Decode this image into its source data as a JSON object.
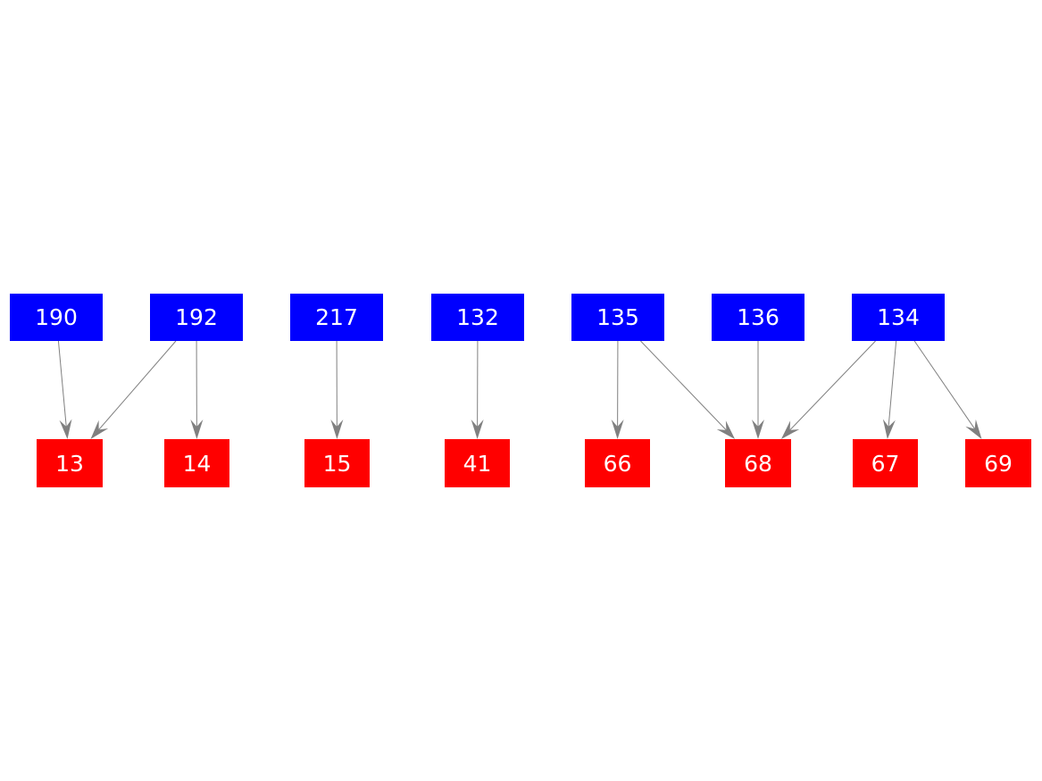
{
  "colors": {
    "source": "#0000ff",
    "target": "#ff0000",
    "edge": "#808080",
    "label": "#ffffff"
  },
  "nodes": [
    {
      "id": "190",
      "label": "190",
      "group": "source"
    },
    {
      "id": "192",
      "label": "192",
      "group": "source"
    },
    {
      "id": "217",
      "label": "217",
      "group": "source"
    },
    {
      "id": "132",
      "label": "132",
      "group": "source"
    },
    {
      "id": "135",
      "label": "135",
      "group": "source"
    },
    {
      "id": "136",
      "label": "136",
      "group": "source"
    },
    {
      "id": "134",
      "label": "134",
      "group": "source"
    },
    {
      "id": "13",
      "label": "13",
      "group": "target"
    },
    {
      "id": "14",
      "label": "14",
      "group": "target"
    },
    {
      "id": "15",
      "label": "15",
      "group": "target"
    },
    {
      "id": "41",
      "label": "41",
      "group": "target"
    },
    {
      "id": "66",
      "label": "66",
      "group": "target"
    },
    {
      "id": "68",
      "label": "68",
      "group": "target"
    },
    {
      "id": "67",
      "label": "67",
      "group": "target"
    },
    {
      "id": "69",
      "label": "69",
      "group": "target"
    }
  ],
  "edges": [
    {
      "from": "190",
      "to": "13"
    },
    {
      "from": "192",
      "to": "13"
    },
    {
      "from": "192",
      "to": "14"
    },
    {
      "from": "217",
      "to": "15"
    },
    {
      "from": "132",
      "to": "41"
    },
    {
      "from": "135",
      "to": "66"
    },
    {
      "from": "135",
      "to": "68"
    },
    {
      "from": "136",
      "to": "68"
    },
    {
      "from": "134",
      "to": "68"
    },
    {
      "from": "134",
      "to": "67"
    },
    {
      "from": "134",
      "to": "69"
    }
  ]
}
